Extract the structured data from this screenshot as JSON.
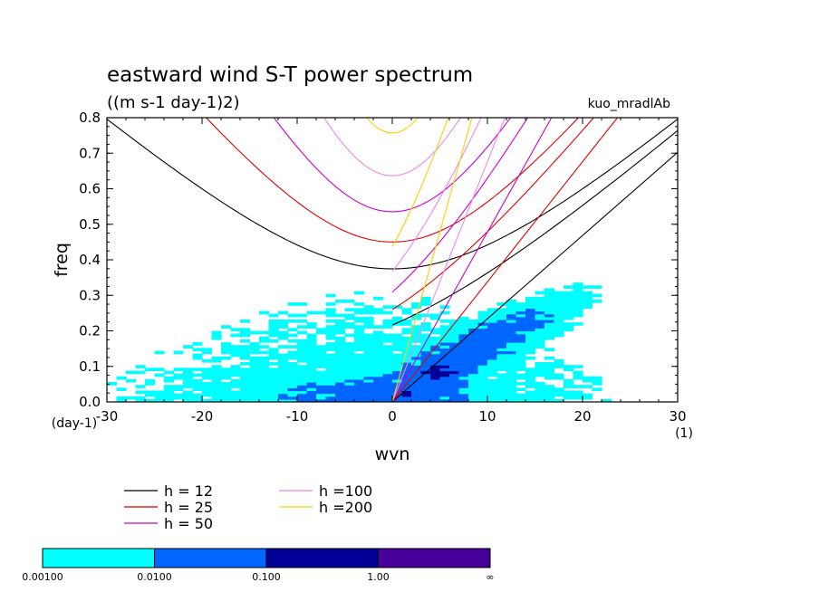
{
  "chart_data": {
    "type": "heatmap",
    "title": "eastward wind S-T power spectrum",
    "subtitle": "((m s-1 day-1)2)",
    "tag": "kuo_mradlAb",
    "xlabel": "wvn",
    "ylabel": "freq",
    "x_unit_label": "(1)",
    "y_unit_label": "(day-1)",
    "xlim": [
      -30,
      30
    ],
    "ylim": [
      0,
      0.8
    ],
    "x_ticks": [
      -30,
      -20,
      -10,
      0,
      10,
      20,
      30
    ],
    "x_tick_labels": [
      "-30",
      "-20",
      "-10",
      "0",
      "10",
      "20",
      "30"
    ],
    "y_ticks": [
      0,
      0.1,
      0.2,
      0.3,
      0.4,
      0.5,
      0.6,
      0.7,
      0.8
    ],
    "y_tick_labels": [
      "0.0",
      "0.1",
      "0.2",
      "0.3",
      "0.4",
      "0.5",
      "0.6",
      "0.7",
      "0.8"
    ],
    "shading_levels": [
      0.001,
      0.01,
      0.1,
      1.0
    ],
    "colorbar": {
      "colors": [
        "#00ffff",
        "#0066ff",
        "#000099",
        "#440099"
      ],
      "labels": [
        "0.00100",
        "0.0100",
        "0.100",
        "1.00",
        "∞"
      ]
    },
    "dispersion_curves": [
      {
        "name": "h = 12",
        "h": 12,
        "color": "#000000"
      },
      {
        "name": "h = 25",
        "h": 25,
        "color": "#dd0000"
      },
      {
        "name": "h = 50",
        "h": 50,
        "color": "#cc00cc"
      },
      {
        "name": "h =100",
        "h": 100,
        "color": "#ee88ee"
      },
      {
        "name": "h =200",
        "h": 200,
        "color": "#ffcc00"
      }
    ]
  }
}
